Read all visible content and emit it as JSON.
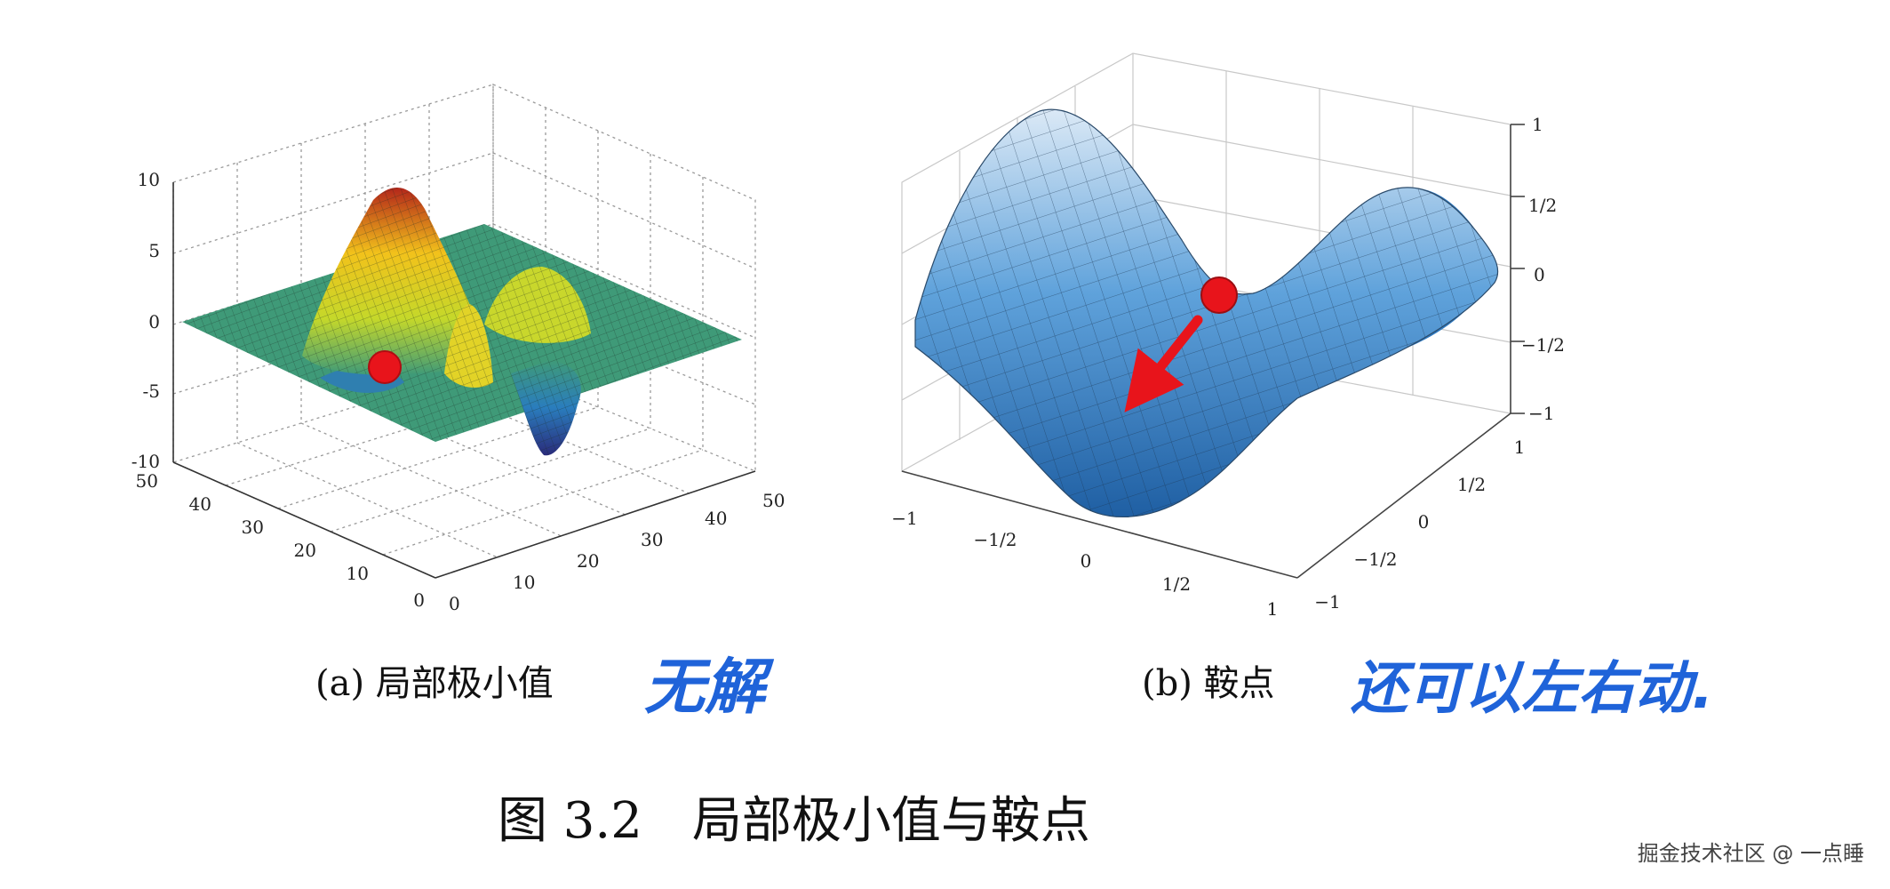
{
  "figure": {
    "caption": "图 3.2　局部极小值与鞍点",
    "watermark": "掘金技术社区 @ 一点睡"
  },
  "panel_a": {
    "caption": "(a) 局部极小值",
    "annotation": "无解",
    "z_ticks": [
      "10",
      "5",
      "0",
      "-5",
      "-10"
    ],
    "y_ticks": [
      "50",
      "40",
      "30",
      "20",
      "10",
      "0"
    ],
    "x_ticks": [
      "0",
      "10",
      "20",
      "30",
      "40",
      "50"
    ],
    "marker_color": "#e8141b"
  },
  "panel_b": {
    "caption": "(b) 鞍点",
    "annotation": "还可以左右动.",
    "z_ticks": [
      "1",
      "1/2",
      "0",
      "−1/2",
      "−1"
    ],
    "x_ticks": [
      "−1",
      "−1/2",
      "0",
      "1/2",
      "1"
    ],
    "y_ticks": [
      "1",
      "1/2",
      "0",
      "−1/2",
      "−1"
    ],
    "marker_color": "#e8141b"
  },
  "colors": {
    "annotation": "#1f63d9",
    "saddle_surface": "#3f8fd2",
    "plane": "#3f9a78"
  }
}
